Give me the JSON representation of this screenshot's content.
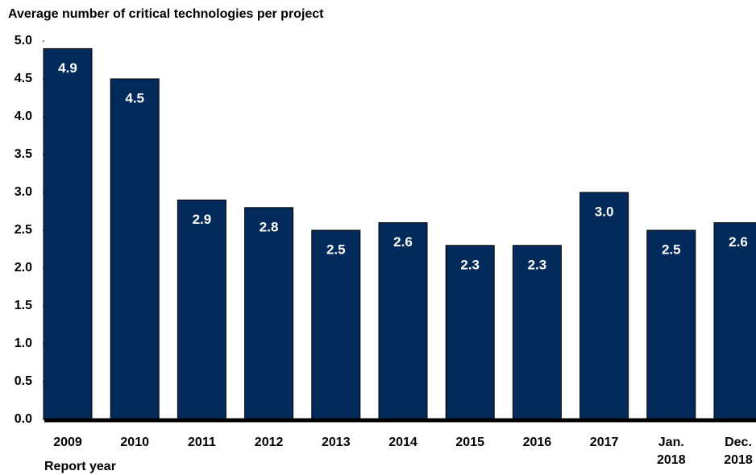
{
  "chart_data": {
    "type": "bar",
    "y_label": "Average number of critical technologies per project",
    "x_label": "Report year",
    "categories": [
      "2009",
      "2010",
      "2011",
      "2012",
      "2013",
      "2014",
      "2015",
      "2016",
      "2017",
      "Jan. 2018",
      "Dec. 2018"
    ],
    "values": [
      4.9,
      4.5,
      2.9,
      2.8,
      2.5,
      2.6,
      2.3,
      2.3,
      3.0,
      2.5,
      2.6
    ],
    "value_labels": [
      "4.9",
      "4.5",
      "2.9",
      "2.8",
      "2.5",
      "2.6",
      "2.3",
      "2.3",
      "3.0",
      "2.5",
      "2.6"
    ],
    "color": "#022a5a",
    "ylim": [
      0,
      5
    ],
    "yticks": [
      {
        "value": 0,
        "label": "0.0"
      },
      {
        "value": 0.5,
        "label": "0.5"
      },
      {
        "value": 1,
        "label": "1.0"
      },
      {
        "value": 1.5,
        "label": "1.5"
      },
      {
        "value": 2,
        "label": "2.0"
      },
      {
        "value": 2.5,
        "label": "2.5"
      },
      {
        "value": 3,
        "label": "3.0"
      },
      {
        "value": 3.5,
        "label": "3.5"
      },
      {
        "value": 4,
        "label": "4.0"
      },
      {
        "value": 4.5,
        "label": "4.5"
      },
      {
        "value": 5,
        "label": "5.0"
      }
    ],
    "grid": false
  }
}
